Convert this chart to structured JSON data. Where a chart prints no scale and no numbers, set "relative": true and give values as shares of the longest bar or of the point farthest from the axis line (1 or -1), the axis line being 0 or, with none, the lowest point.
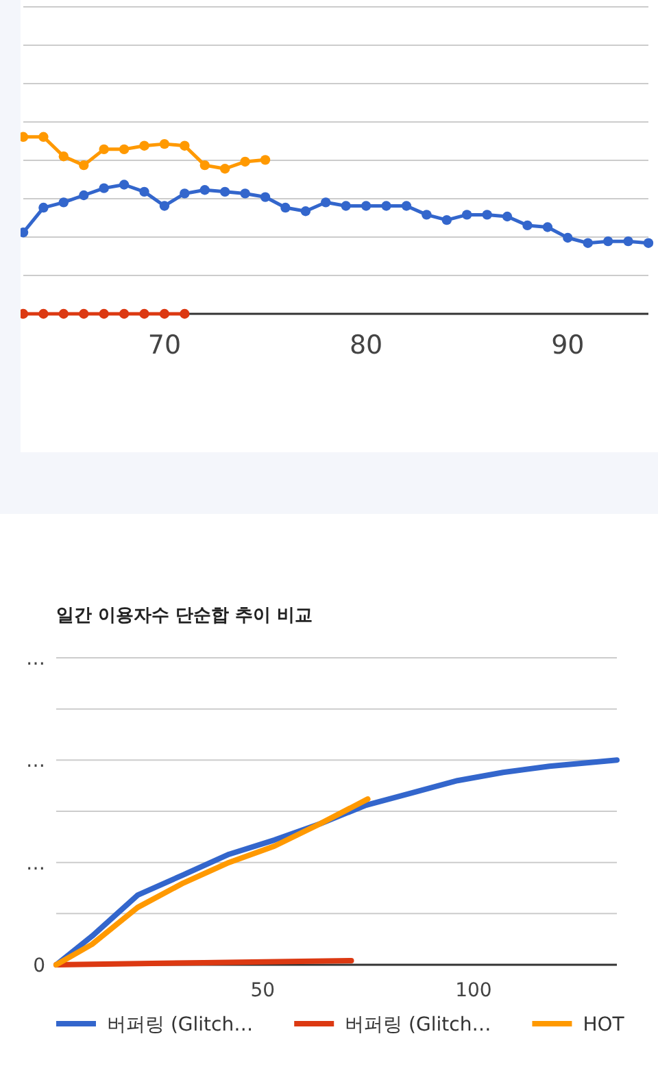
{
  "chart_data": [
    {
      "type": "line",
      "relative": true,
      "grid": true,
      "marker": "circle",
      "line_style": "solid",
      "legend": false,
      "xlim": [
        63,
        94
      ],
      "xticks": [
        70,
        80,
        90
      ],
      "series": [
        {
          "color": "#3366cc",
          "x": [
            63,
            64,
            65,
            66,
            67,
            68,
            69,
            70,
            71,
            72,
            73,
            74,
            75,
            76,
            77,
            78,
            79,
            80,
            81,
            82,
            83,
            84,
            85,
            86,
            87,
            88,
            89,
            90,
            91,
            92,
            93,
            94
          ],
          "values": [
            0.46,
            0.6,
            0.63,
            0.67,
            0.71,
            0.73,
            0.69,
            0.61,
            0.68,
            0.7,
            0.69,
            0.68,
            0.66,
            0.6,
            0.58,
            0.63,
            0.61,
            0.61,
            0.61,
            0.61,
            0.56,
            0.53,
            0.56,
            0.56,
            0.55,
            0.5,
            0.49,
            0.43,
            0.4,
            0.41,
            0.41,
            0.4
          ]
        },
        {
          "color": "#dc3912",
          "x": [
            63,
            64,
            65,
            66,
            67,
            68,
            69,
            70,
            71
          ],
          "values": [
            0,
            0,
            0,
            0,
            0,
            0,
            0,
            0,
            0
          ]
        },
        {
          "color": "#ff9900",
          "x": [
            63,
            64,
            65,
            66,
            67,
            68,
            69,
            70,
            71,
            72,
            73,
            74,
            75
          ],
          "values": [
            1,
            1,
            0.89,
            0.84,
            0.93,
            0.93,
            0.95,
            0.96,
            0.95,
            0.84,
            0.82,
            0.86,
            0.87
          ]
        }
      ]
    },
    {
      "type": "line",
      "title": "일간 이용자수 단순합 추이 비교",
      "relative": true,
      "grid": true,
      "marker": "none",
      "line_style": "solid",
      "legend": "bottom",
      "xlim": [
        1,
        134
      ],
      "xticks": [
        50,
        100
      ],
      "annotations": [
        "0",
        "…",
        "…",
        "…"
      ],
      "series": [
        {
          "name": "버퍼링 (Glitch…",
          "color": "#3366cc",
          "x": [
            1,
            9.5,
            20.3,
            31.2,
            42,
            52.8,
            63.7,
            74.5,
            85.4,
            96.2,
            107,
            118,
            134
          ],
          "values": [
            0,
            0.14,
            0.34,
            0.44,
            0.54,
            0.61,
            0.69,
            0.78,
            0.84,
            0.9,
            0.94,
            0.97,
            1
          ]
        },
        {
          "name": "버퍼링 (Glitch…",
          "color": "#dc3912",
          "x": [
            1,
            36,
            71
          ],
          "values": [
            0,
            0.01,
            0.02
          ]
        },
        {
          "name": "HOT",
          "color": "#ff9900",
          "x": [
            1,
            9.5,
            20.3,
            31.2,
            42,
            52.8,
            63.7,
            74.9
          ],
          "values": [
            0,
            0.1,
            0.28,
            0.4,
            0.5,
            0.58,
            0.69,
            0.81
          ]
        }
      ]
    }
  ]
}
